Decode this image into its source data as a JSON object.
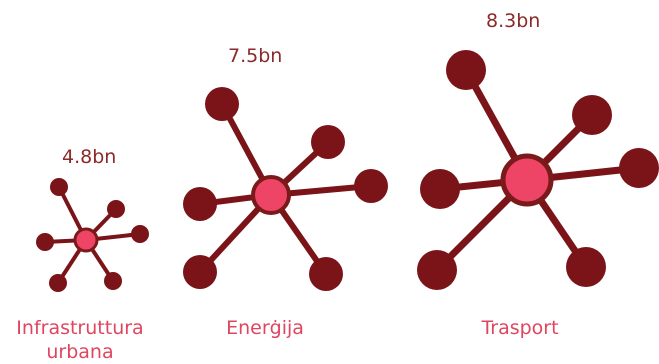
{
  "chart_data": {
    "type": "other",
    "items": [
      {
        "label_line1": "Infrastruttura",
        "label_line2": "urbana",
        "value_label": "4.8bn",
        "value": 4.8
      },
      {
        "label_line1": "Enerġija",
        "label_line2": "",
        "value_label": "7.5bn",
        "value": 7.5
      },
      {
        "label_line1": "Trasport",
        "label_line2": "",
        "value_label": "8.3bn",
        "value": 8.3
      }
    ]
  },
  "colors": {
    "hub": "#ee4466",
    "hub_outline": "#7a1a1a",
    "node": "#7a1418",
    "spoke": "#7a1418",
    "value_text": "#8a2a2a",
    "label_text": "#e0455f"
  }
}
